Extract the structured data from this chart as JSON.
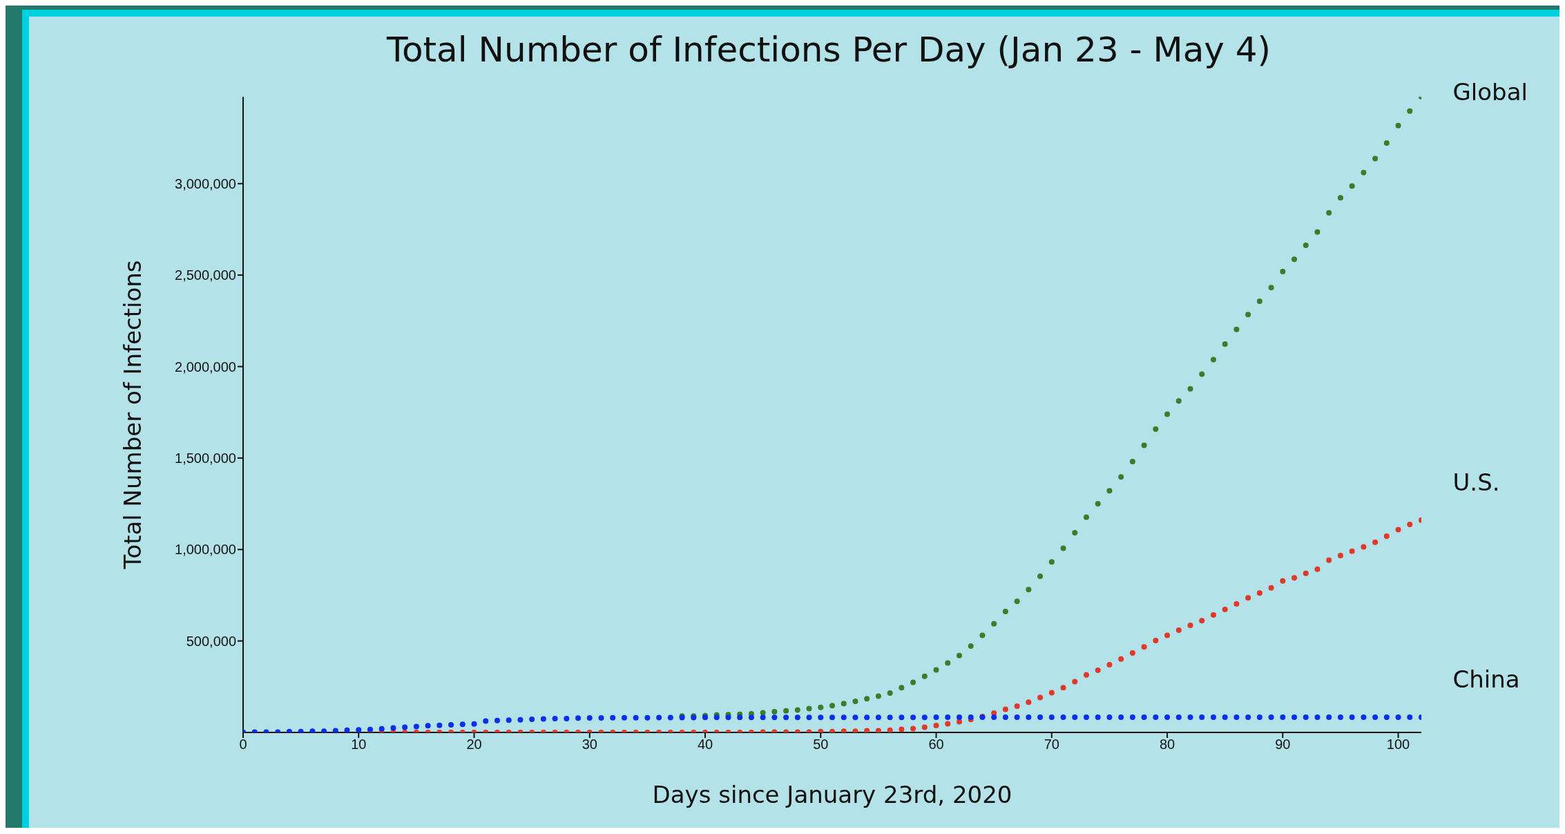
{
  "chart_data": {
    "type": "scatter",
    "title": "Total Number of Infections Per Day (Jan 23 - May 4)",
    "xlabel": "Days since January 23rd, 2020",
    "ylabel": "Total Number of Infections",
    "x": [
      0,
      1,
      2,
      3,
      4,
      5,
      6,
      7,
      8,
      9,
      10,
      11,
      12,
      13,
      14,
      15,
      16,
      17,
      18,
      19,
      20,
      21,
      22,
      23,
      24,
      25,
      26,
      27,
      28,
      29,
      30,
      31,
      32,
      33,
      34,
      35,
      36,
      37,
      38,
      39,
      40,
      41,
      42,
      43,
      44,
      45,
      46,
      47,
      48,
      49,
      50,
      51,
      52,
      53,
      54,
      55,
      56,
      57,
      58,
      59,
      60,
      61,
      62,
      63,
      64,
      65,
      66,
      67,
      68,
      69,
      70,
      71,
      72,
      73,
      74,
      75,
      76,
      77,
      78,
      79,
      80,
      81,
      82,
      83,
      84,
      85,
      86,
      87,
      88,
      89,
      90,
      91,
      92,
      93,
      94,
      95,
      96,
      97,
      98,
      99,
      100,
      101,
      102
    ],
    "series": [
      {
        "name": "Global",
        "color": "#3a7d2a",
        "values": [
          null,
          null,
          null,
          null,
          null,
          null,
          null,
          null,
          null,
          null,
          null,
          null,
          null,
          null,
          null,
          null,
          null,
          null,
          null,
          null,
          null,
          null,
          null,
          null,
          null,
          null,
          null,
          null,
          null,
          null,
          null,
          null,
          null,
          null,
          null,
          null,
          null,
          null,
          90000,
          90000,
          92000,
          95000,
          97000,
          99000,
          102000,
          108000,
          113000,
          118000,
          123000,
          130000,
          137000,
          146000,
          158000,
          170000,
          184000,
          198000,
          215000,
          245000,
          274000,
          307000,
          342000,
          380000,
          420000,
          472000,
          531000,
          594000,
          661000,
          717000,
          781000,
          854000,
          932000,
          1007000,
          1092000,
          1177000,
          1250000,
          1321000,
          1397000,
          1481000,
          1569000,
          1658000,
          1739000,
          1812000,
          1878000,
          1958000,
          2038000,
          2123000,
          2203000,
          2284000,
          2357000,
          2432000,
          2519000,
          2586000,
          2663000,
          2736000,
          2840000,
          2923000,
          2987000,
          3060000,
          3137000,
          3222000,
          3317000,
          3397000,
          3475000
        ]
      },
      {
        "name": "U.S.",
        "color": "#e0392b",
        "values": [
          null,
          null,
          null,
          null,
          null,
          null,
          null,
          null,
          null,
          null,
          null,
          0,
          0,
          0,
          0,
          0,
          0,
          0,
          0,
          0,
          0,
          0,
          0,
          0,
          0,
          0,
          0,
          0,
          0,
          0,
          0,
          0,
          0,
          0,
          0,
          0,
          0,
          0,
          0,
          0,
          0,
          0,
          0,
          0,
          0,
          2000,
          2000,
          2000,
          2000,
          2000,
          5000,
          5000,
          7000,
          7000,
          9000,
          9000,
          12000,
          17000,
          21000,
          28000,
          38000,
          47000,
          59000,
          71000,
          87000,
          106000,
          127000,
          144000,
          165000,
          191000,
          217000,
          245000,
          278000,
          314000,
          340000,
          370000,
          401000,
          434000,
          467000,
          502000,
          531000,
          559000,
          585000,
          611000,
          642000,
          672000,
          703000,
          736000,
          762000,
          790000,
          828000,
          845000,
          870000,
          892000,
          941000,
          967000,
          991000,
          1014000,
          1040000,
          1073000,
          1109000,
          1137000,
          1161000
        ]
      },
      {
        "name": "China",
        "color": "#0a2ef0",
        "values": [
          1000,
          2000,
          2000,
          2000,
          5000,
          5000,
          7000,
          7000,
          9000,
          12000,
          14000,
          16000,
          20000,
          25000,
          28000,
          32000,
          37000,
          39000,
          42000,
          44000,
          46000,
          62000,
          65000,
          67000,
          69000,
          72000,
          74000,
          76000,
          76000,
          78000,
          79000,
          79000,
          80000,
          80000,
          80000,
          80000,
          81000,
          81000,
          81000,
          81000,
          82000,
          82000,
          82000,
          82000,
          82000,
          82000,
          82000,
          82000,
          82000,
          82000,
          82000,
          82000,
          82000,
          82000,
          82000,
          82000,
          82000,
          82000,
          82000,
          82000,
          83000,
          83000,
          83000,
          83000,
          83000,
          83000,
          83000,
          83000,
          83000,
          83000,
          83000,
          83000,
          83000,
          83000,
          83000,
          83000,
          83000,
          83000,
          83000,
          83000,
          83000,
          83000,
          83000,
          83000,
          83000,
          83000,
          83000,
          83000,
          83000,
          83000,
          83000,
          83000,
          83000,
          83000,
          83000,
          83000,
          83000,
          83000,
          83000,
          83000,
          83000,
          83000,
          83000
        ]
      }
    ],
    "xlim": [
      0,
      102
    ],
    "xticks": [
      0,
      10,
      20,
      30,
      40,
      50,
      60,
      70,
      80,
      90,
      100
    ],
    "ylim": [
      0,
      3475000
    ],
    "yticks": [
      {
        "value": 500000,
        "label": "500,000"
      },
      {
        "value": 1000000,
        "label": "1,000,000"
      },
      {
        "value": 1500000,
        "label": "1,500,000"
      },
      {
        "value": 2000000,
        "label": "2,000,000"
      },
      {
        "value": 2500000,
        "label": "2,500,000"
      },
      {
        "value": 3000000,
        "label": "3,000,000"
      }
    ],
    "grid": false,
    "legend": false,
    "marker": "circle"
  }
}
